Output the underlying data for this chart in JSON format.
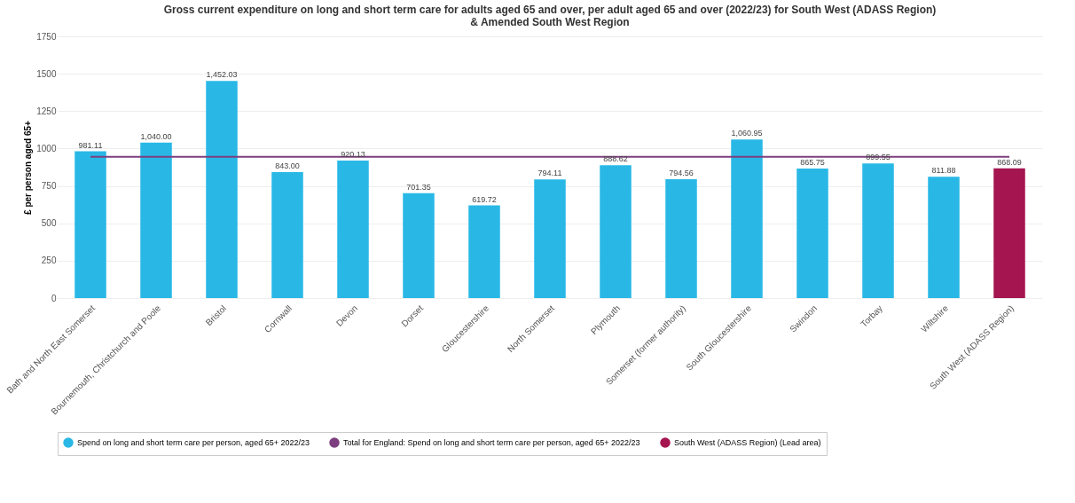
{
  "chart_data": {
    "type": "bar",
    "title": "Gross current expenditure on long and short term care for adults aged 65 and over, per adult aged 65 and over (2022/23) for South West (ADASS Region) & Amended South West Region",
    "ylabel": "£ per person aged 65+",
    "categories": [
      "Bath and North East Somerset",
      "Bournemouth, Christchurch and Poole",
      "Bristol",
      "Cornwall",
      "Devon",
      "Dorset",
      "Gloucestershire",
      "North Somerset",
      "Plymouth",
      "Somerset (former authority)",
      "South Gloucestershire",
      "Swindon",
      "Torbay",
      "Wiltshire",
      "South West (ADASS Region)"
    ],
    "series": [
      {
        "name": "Spend on long and short term care per person, aged 65+ 2022/23",
        "color": "#29b8e6",
        "values": [
          981.11,
          1040.0,
          1452.03,
          843.0,
          920.13,
          701.35,
          619.72,
          794.11,
          888.62,
          794.56,
          1060.95,
          865.75,
          899.55,
          811.88,
          null
        ],
        "value_labels": [
          "981.11",
          "1,040.00",
          "1,452.03",
          "843.00",
          "920.13",
          "701.35",
          "619.72",
          "794.11",
          "888.62",
          "794.56",
          "1,060.95",
          "865.75",
          "899.55",
          "811.88",
          null
        ]
      },
      {
        "name": "Total for England: Spend on long and short term care per person, aged 65+ 2022/23",
        "type": "line",
        "color": "#7d3f7f",
        "values": [
          945,
          945,
          945,
          945,
          945,
          945,
          945,
          945,
          945,
          945,
          945,
          945,
          945,
          945,
          945
        ]
      },
      {
        "name": "South West (ADASS Region) (Lead area)",
        "color": "#a5154f",
        "values": [
          null,
          null,
          null,
          null,
          null,
          null,
          null,
          null,
          null,
          null,
          null,
          null,
          null,
          null,
          868.09
        ],
        "value_labels": [
          null,
          null,
          null,
          null,
          null,
          null,
          null,
          null,
          null,
          null,
          null,
          null,
          null,
          null,
          "868.09"
        ]
      }
    ],
    "ylim": [
      0,
      1750
    ],
    "yticks": [
      0,
      250,
      500,
      750,
      1000,
      1250,
      1500,
      1750
    ],
    "grid": "y",
    "legend": "bottom"
  }
}
